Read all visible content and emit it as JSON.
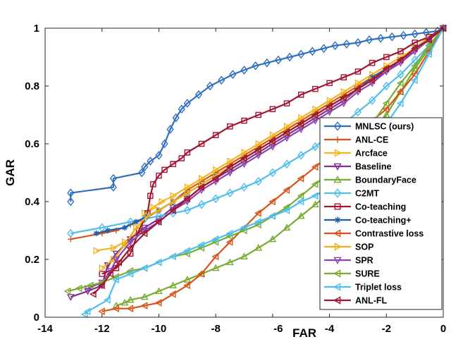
{
  "chart_data": {
    "type": "line",
    "xlabel": "FAR",
    "ylabel": "GAR",
    "xlim": [
      -14,
      0
    ],
    "ylim": [
      0,
      1
    ],
    "xticks": [
      -14,
      -12,
      -10,
      -8,
      -6,
      -4,
      -2,
      0
    ],
    "yticks": [
      0,
      0.2,
      0.4,
      0.6,
      0.8,
      1
    ],
    "legend_position": "bottom-right",
    "series": [
      {
        "name": "MNLSC (ours)",
        "color": "#2E6FBF",
        "marker": "diamond",
        "x": [
          -13.1,
          -13.1,
          -11.6,
          -11.6,
          -10.6,
          -10.5,
          -10.3,
          -10.0,
          -9.8,
          -9.6,
          -9.4,
          -9.2,
          -9.0,
          -8.6,
          -8.2,
          -7.8,
          -7.4,
          -7.0,
          -6.6,
          -6.2,
          -5.8,
          -5.4,
          -5.0,
          -4.6,
          -4.2,
          -3.8,
          -3.4,
          -3.0,
          -2.6,
          -2.2,
          -1.8,
          -1.4,
          -1.0,
          -0.6,
          -0.2,
          0
        ],
        "y": [
          0.4,
          0.43,
          0.45,
          0.48,
          0.5,
          0.52,
          0.54,
          0.56,
          0.6,
          0.65,
          0.69,
          0.72,
          0.74,
          0.77,
          0.8,
          0.82,
          0.84,
          0.855,
          0.87,
          0.88,
          0.89,
          0.9,
          0.91,
          0.92,
          0.93,
          0.94,
          0.945,
          0.95,
          0.96,
          0.965,
          0.97,
          0.975,
          0.98,
          0.985,
          0.99,
          1.0
        ]
      },
      {
        "name": "ANL-CE",
        "color": "#D95319",
        "marker": "plus",
        "x": [
          -13.1,
          -12.0,
          -11.5,
          -11.0,
          -10.5,
          -10.0,
          -9.5,
          -9.0,
          -8.5,
          -8.0,
          -7.5,
          -7.0,
          -6.5,
          -6.0,
          -5.5,
          -5.0,
          -4.5,
          -4.0,
          -3.5,
          -3.0,
          -2.5,
          -2.0,
          -1.5,
          -1.0,
          -0.5,
          0
        ],
        "y": [
          0.27,
          0.29,
          0.3,
          0.32,
          0.34,
          0.37,
          0.4,
          0.44,
          0.47,
          0.5,
          0.53,
          0.56,
          0.59,
          0.62,
          0.65,
          0.68,
          0.71,
          0.74,
          0.77,
          0.8,
          0.83,
          0.86,
          0.89,
          0.93,
          0.96,
          1.0
        ]
      },
      {
        "name": "Arcface",
        "color": "#F5B51E",
        "marker": "triangle-right",
        "x": [
          -12.2,
          -11.6,
          -11.2,
          -10.7,
          -10.5,
          -10.2,
          -9.9,
          -9.5,
          -9.0,
          -8.5,
          -8.0,
          -7.5,
          -7.0,
          -6.5,
          -6.0,
          -5.5,
          -5.0,
          -4.5,
          -4.0,
          -3.5,
          -3.0,
          -2.5,
          -2.0,
          -1.5,
          -1.0,
          -0.5,
          0
        ],
        "y": [
          0.23,
          0.24,
          0.26,
          0.3,
          0.36,
          0.38,
          0.4,
          0.42,
          0.45,
          0.48,
          0.51,
          0.54,
          0.57,
          0.6,
          0.63,
          0.66,
          0.69,
          0.72,
          0.75,
          0.78,
          0.81,
          0.84,
          0.87,
          0.9,
          0.93,
          0.97,
          1.0
        ]
      },
      {
        "name": "Baseline",
        "color": "#7E2F8E",
        "marker": "triangle-down",
        "x": [
          -13.1,
          -12.5,
          -12.0,
          -11.8,
          -11.5,
          -11.0,
          -10.5,
          -10.0,
          -9.5,
          -9.0,
          -8.5,
          -8.0,
          -7.5,
          -7.0,
          -6.5,
          -6.0,
          -5.5,
          -5.0,
          -4.5,
          -4.0,
          -3.5,
          -3.0,
          -2.5,
          -2.0,
          -1.5,
          -1.0,
          -0.5,
          0
        ],
        "y": [
          0.07,
          0.09,
          0.11,
          0.18,
          0.22,
          0.27,
          0.31,
          0.34,
          0.38,
          0.41,
          0.45,
          0.48,
          0.51,
          0.54,
          0.57,
          0.6,
          0.63,
          0.66,
          0.69,
          0.72,
          0.75,
          0.79,
          0.82,
          0.85,
          0.89,
          0.92,
          0.96,
          1.0
        ]
      },
      {
        "name": "BoundaryFace",
        "color": "#77AC30",
        "marker": "triangle-up",
        "x": [
          -11.5,
          -11.2,
          -11.0,
          -10.5,
          -10.0,
          -9.5,
          -9.0,
          -8.5,
          -8.0,
          -7.5,
          -7.0,
          -6.5,
          -6.0,
          -5.5,
          -5.0,
          -4.5,
          -4.0,
          -3.5,
          -3.0,
          -2.5,
          -2.0,
          -1.5,
          -1.0,
          -0.5,
          0
        ],
        "y": [
          0.04,
          0.05,
          0.06,
          0.07,
          0.09,
          0.11,
          0.13,
          0.15,
          0.17,
          0.19,
          0.21,
          0.24,
          0.27,
          0.31,
          0.35,
          0.39,
          0.43,
          0.49,
          0.55,
          0.62,
          0.7,
          0.78,
          0.86,
          0.93,
          1.0
        ]
      },
      {
        "name": "C2MT",
        "color": "#4DBEEE",
        "marker": "diamond",
        "x": [
          -13.1,
          -12.0,
          -11.0,
          -10.5,
          -10.0,
          -9.5,
          -9.0,
          -8.5,
          -8.0,
          -7.5,
          -7.0,
          -6.5,
          -6.0,
          -5.5,
          -5.0,
          -4.5,
          -4.0,
          -3.5,
          -3.0,
          -2.5,
          -2.0,
          -1.5,
          -1.0,
          -0.5,
          0
        ],
        "y": [
          0.29,
          0.31,
          0.33,
          0.34,
          0.35,
          0.36,
          0.37,
          0.39,
          0.41,
          0.43,
          0.45,
          0.47,
          0.5,
          0.53,
          0.56,
          0.59,
          0.63,
          0.67,
          0.71,
          0.75,
          0.8,
          0.84,
          0.89,
          0.94,
          1.0
        ]
      },
      {
        "name": "Co-teaching",
        "color": "#A2142F",
        "marker": "square",
        "x": [
          -12.0,
          -11.5,
          -11.0,
          -10.7,
          -10.4,
          -10.3,
          -10.2,
          -10.0,
          -9.8,
          -9.5,
          -9.2,
          -9.0,
          -8.5,
          -8.0,
          -7.5,
          -7.0,
          -6.5,
          -6.0,
          -5.5,
          -5.0,
          -4.5,
          -4.0,
          -3.5,
          -3.0,
          -2.5,
          -2.0,
          -1.5,
          -1.0,
          -0.5,
          0
        ],
        "y": [
          0.15,
          0.17,
          0.22,
          0.3,
          0.36,
          0.42,
          0.46,
          0.49,
          0.51,
          0.53,
          0.55,
          0.57,
          0.6,
          0.63,
          0.66,
          0.68,
          0.7,
          0.72,
          0.74,
          0.77,
          0.79,
          0.81,
          0.83,
          0.85,
          0.88,
          0.9,
          0.92,
          0.95,
          0.97,
          1.0
        ]
      },
      {
        "name": "Co-teaching+",
        "color": "#1F5FA6",
        "marker": "asterisk",
        "x": [
          -12.2,
          -11.8,
          -11.2,
          -10.8,
          -10.4,
          -10.0,
          -9.5,
          -9.0,
          -8.5,
          -8.0,
          -7.5,
          -7.0,
          -6.5,
          -6.0,
          -5.5,
          -5.0,
          -4.5,
          -4.0,
          -3.5,
          -3.0,
          -2.5,
          -2.0,
          -1.5,
          -1.0,
          -0.5,
          0
        ],
        "y": [
          0.29,
          0.3,
          0.31,
          0.33,
          0.35,
          0.37,
          0.4,
          0.43,
          0.46,
          0.49,
          0.52,
          0.55,
          0.58,
          0.61,
          0.64,
          0.67,
          0.7,
          0.73,
          0.76,
          0.79,
          0.83,
          0.86,
          0.89,
          0.93,
          0.96,
          1.0
        ]
      },
      {
        "name": "Contrastive loss",
        "color": "#D95319",
        "marker": "triangle-left",
        "x": [
          -12.0,
          -11.5,
          -11.0,
          -10.5,
          -10.0,
          -9.5,
          -9.0,
          -8.5,
          -8.0,
          -7.5,
          -7.0,
          -6.5,
          -6.0,
          -5.5,
          -5.0,
          -4.5,
          -4.0,
          -3.5,
          -3.0,
          -2.5,
          -2.0,
          -1.5,
          -1.0,
          -0.5,
          0
        ],
        "y": [
          0.02,
          0.03,
          0.03,
          0.04,
          0.05,
          0.08,
          0.11,
          0.15,
          0.21,
          0.26,
          0.31,
          0.36,
          0.4,
          0.44,
          0.48,
          0.52,
          0.56,
          0.6,
          0.64,
          0.68,
          0.72,
          0.78,
          0.84,
          0.92,
          1.0
        ]
      },
      {
        "name": "SOP",
        "color": "#EDB120",
        "marker": "triangle-right",
        "x": [
          -12.0,
          -11.6,
          -11.2,
          -10.8,
          -10.4,
          -10.0,
          -9.5,
          -9.0,
          -8.5,
          -8.0,
          -7.5,
          -7.0,
          -6.5,
          -6.0,
          -5.5,
          -5.0,
          -4.5,
          -4.0,
          -3.5,
          -3.0,
          -2.5,
          -2.0,
          -1.5,
          -1.0,
          -0.5,
          0
        ],
        "y": [
          0.17,
          0.2,
          0.25,
          0.31,
          0.35,
          0.37,
          0.4,
          0.43,
          0.46,
          0.49,
          0.52,
          0.55,
          0.58,
          0.61,
          0.64,
          0.67,
          0.7,
          0.73,
          0.76,
          0.79,
          0.82,
          0.86,
          0.89,
          0.93,
          0.96,
          1.0
        ]
      },
      {
        "name": "SPR",
        "color": "#8E44AD",
        "marker": "triangle-down",
        "x": [
          -12.5,
          -12.0,
          -11.7,
          -11.5,
          -11.0,
          -10.5,
          -10.0,
          -9.5,
          -9.0,
          -8.5,
          -8.0,
          -7.5,
          -7.0,
          -6.5,
          -6.0,
          -5.5,
          -5.0,
          -4.5,
          -4.0,
          -3.5,
          -3.0,
          -2.5,
          -2.0,
          -1.5,
          -1.0,
          -0.5,
          0
        ],
        "y": [
          0.1,
          0.12,
          0.16,
          0.2,
          0.26,
          0.3,
          0.33,
          0.37,
          0.4,
          0.44,
          0.47,
          0.5,
          0.53,
          0.56,
          0.59,
          0.62,
          0.65,
          0.68,
          0.71,
          0.74,
          0.78,
          0.81,
          0.85,
          0.88,
          0.92,
          0.96,
          1.0
        ]
      },
      {
        "name": "SURE",
        "color": "#77AC30",
        "marker": "triangle-left",
        "x": [
          -13.2,
          -12.8,
          -12.4,
          -12.0,
          -11.5,
          -11.0,
          -10.5,
          -10.0,
          -9.5,
          -9.0,
          -8.5,
          -8.0,
          -7.5,
          -7.0,
          -6.5,
          -6.0,
          -5.5,
          -5.0,
          -4.5,
          -4.0,
          -3.5,
          -3.0,
          -2.5,
          -2.0,
          -1.5,
          -1.0,
          -0.5,
          0
        ],
        "y": [
          0.09,
          0.1,
          0.11,
          0.12,
          0.14,
          0.16,
          0.17,
          0.19,
          0.21,
          0.22,
          0.24,
          0.26,
          0.28,
          0.3,
          0.32,
          0.35,
          0.38,
          0.42,
          0.46,
          0.5,
          0.55,
          0.61,
          0.67,
          0.74,
          0.81,
          0.87,
          0.94,
          1.0
        ]
      },
      {
        "name": "Triplet loss",
        "color": "#4DBEEE",
        "marker": "triangle-left",
        "x": [
          -12.6,
          -12.5,
          -11.8,
          -11.5,
          -11.0,
          -10.5,
          -10.0,
          -9.5,
          -9.0,
          -8.5,
          -8.0,
          -7.5,
          -7.0,
          -6.5,
          -6.0,
          -5.5,
          -5.0,
          -4.5,
          -4.0,
          -3.5,
          -3.0,
          -2.5,
          -2.0,
          -1.5,
          -1.0,
          -0.5,
          0
        ],
        "y": [
          0.01,
          0.02,
          0.06,
          0.13,
          0.15,
          0.17,
          0.19,
          0.21,
          0.23,
          0.25,
          0.27,
          0.29,
          0.31,
          0.33,
          0.35,
          0.37,
          0.4,
          0.42,
          0.45,
          0.5,
          0.55,
          0.6,
          0.67,
          0.74,
          0.82,
          0.91,
          1.0
        ]
      },
      {
        "name": "ANL-FL",
        "color": "#A2142F",
        "marker": "triangle-left",
        "x": [
          -12.3,
          -12.0,
          -11.7,
          -11.4,
          -11.0,
          -10.5,
          -10.0,
          -9.5,
          -9.0,
          -8.5,
          -8.0,
          -7.5,
          -7.0,
          -6.5,
          -6.0,
          -5.5,
          -5.0,
          -4.5,
          -4.0,
          -3.5,
          -3.0,
          -2.5,
          -2.0,
          -1.5,
          -1.0,
          -0.5,
          0
        ],
        "y": [
          0.08,
          0.11,
          0.15,
          0.19,
          0.24,
          0.29,
          0.33,
          0.37,
          0.41,
          0.45,
          0.48,
          0.52,
          0.55,
          0.58,
          0.61,
          0.64,
          0.67,
          0.7,
          0.73,
          0.76,
          0.79,
          0.82,
          0.86,
          0.89,
          0.93,
          0.96,
          1.0
        ]
      }
    ]
  }
}
